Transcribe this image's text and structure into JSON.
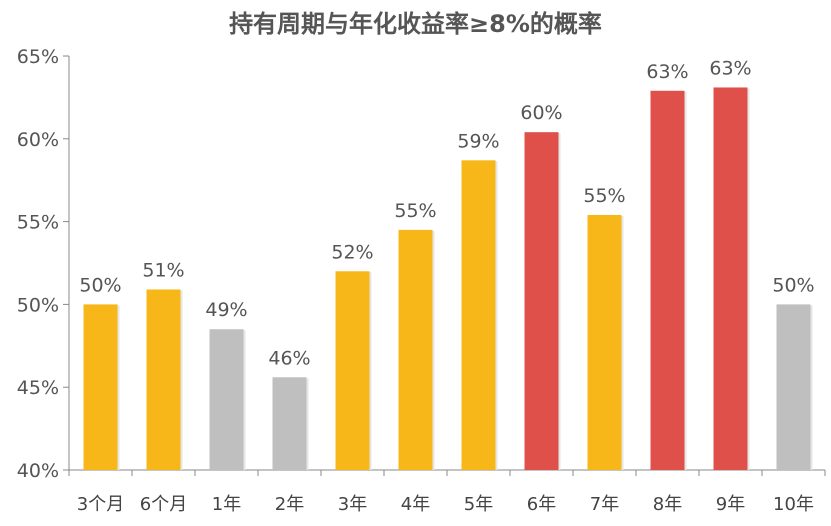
{
  "chart_data": {
    "type": "bar",
    "title": "持有周期与年化收益率≥8%的概率",
    "xlabel": "",
    "ylabel": "",
    "ylim": [
      40,
      65
    ],
    "yticks": [
      40,
      45,
      50,
      55,
      60,
      65
    ],
    "ytick_labels": [
      "40%",
      "45%",
      "50%",
      "55%",
      "60%",
      "65%"
    ],
    "grid": false,
    "categories": [
      "3个月",
      "6个月",
      "1年",
      "2年",
      "3年",
      "4年",
      "5年",
      "6年",
      "7年",
      "8年",
      "9年",
      "10年"
    ],
    "values": [
      50.0,
      50.9,
      48.5,
      45.6,
      52.0,
      54.5,
      58.7,
      60.4,
      55.4,
      62.9,
      63.1,
      50.0
    ],
    "data_labels": [
      "50%",
      "51%",
      "49%",
      "46%",
      "52%",
      "55%",
      "59%",
      "60%",
      "55%",
      "63%",
      "63%",
      "50%"
    ],
    "bar_colors": [
      "#F7B718",
      "#F7B718",
      "#BFBFBF",
      "#BFBFBF",
      "#F7B718",
      "#F7B718",
      "#F7B718",
      "#E0504A",
      "#F7B718",
      "#E0504A",
      "#E0504A",
      "#BFBFBF"
    ]
  }
}
